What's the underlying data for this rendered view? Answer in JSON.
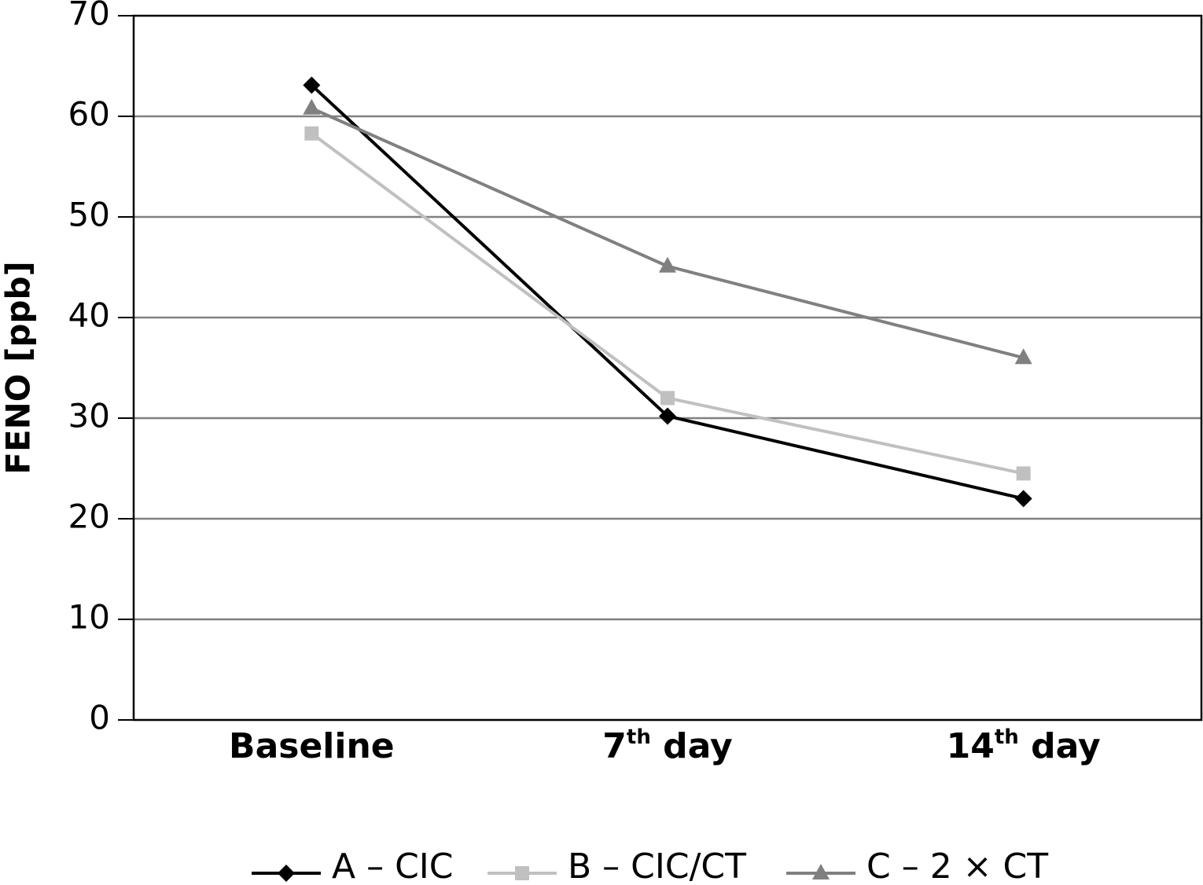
{
  "chart_data": {
    "type": "line",
    "y_label": "FENO [ppb]",
    "categories": [
      "Baseline",
      "7th day",
      "14th day"
    ],
    "series": [
      {
        "name": "A – CIC",
        "color": "#000000",
        "marker": "diamond",
        "values": [
          63.1,
          30.2,
          22.0
        ]
      },
      {
        "name": "B – CIC/CT",
        "color": "#c0c0c0",
        "marker": "square",
        "values": [
          58.3,
          32.0,
          24.5
        ]
      },
      {
        "name": "C – 2 × CT",
        "color": "#808080",
        "marker": "triangle",
        "values": [
          60.8,
          45.1,
          36.0
        ]
      }
    ],
    "ylim": [
      0,
      70
    ],
    "yticks": [
      0,
      10,
      20,
      30,
      40,
      50,
      60,
      70
    ],
    "grid": true,
    "legend": "bottom"
  }
}
